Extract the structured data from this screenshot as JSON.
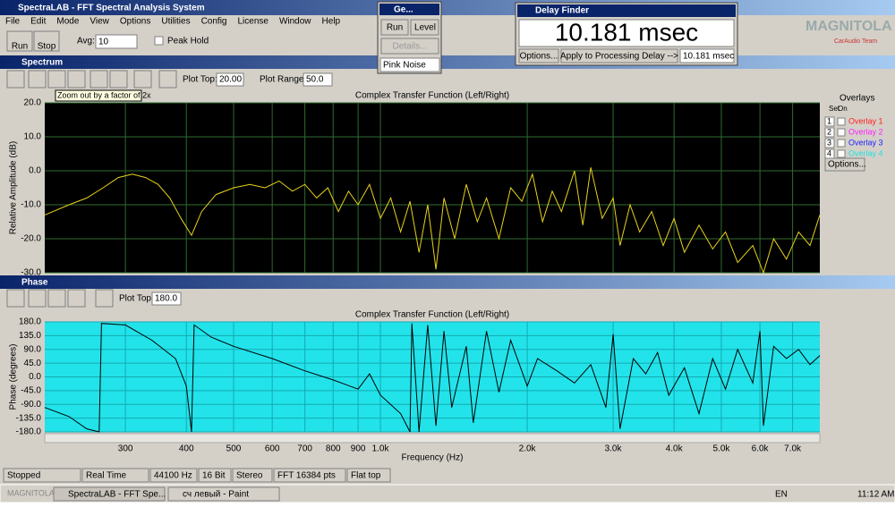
{
  "window": {
    "title": "SpectraLAB - FFT Spectral Analysis System"
  },
  "menu": [
    "File",
    "Edit",
    "Mode",
    "View",
    "Options",
    "Utilities",
    "Config",
    "License",
    "Window",
    "Help"
  ],
  "toolbar": {
    "run": "Run",
    "stop": "Stop",
    "avg_label": "Avg:",
    "avg_value": "10",
    "peak_hold": "Peak Hold"
  },
  "generator": {
    "title": "Ge...",
    "run": "Run",
    "level": "Level",
    "details": "Details...",
    "signal": "Pink Noise"
  },
  "delay_finder": {
    "title": "Delay Finder",
    "value": "10.181 msec",
    "options": "Options...",
    "apply": "Apply to Processing Delay -->",
    "applied": "10.181 msec"
  },
  "logo": {
    "name": "MAGNITOLA",
    "sub": "CarAudio Team"
  },
  "spectrum": {
    "panel_title": "Spectrum",
    "plot_top_label": "Plot Top:",
    "plot_top": "20.00",
    "plot_range_label": "Plot Range:",
    "plot_range": "50.0",
    "tooltip": "Zoom out by a factor of 2x",
    "overlays": {
      "title": "Overlays",
      "set": "Set",
      "on": "On",
      "items": [
        {
          "num": "1",
          "name": "Overlay 1",
          "color": "#ff2020"
        },
        {
          "num": "2",
          "name": "Overlay 2",
          "color": "#ff20ff"
        },
        {
          "num": "3",
          "name": "Overlay 3",
          "color": "#2020ff"
        },
        {
          "num": "4",
          "name": "Overlay 4",
          "color": "#20e0e0"
        }
      ],
      "options": "Options..."
    },
    "chart_data": {
      "type": "line",
      "title": "Complex Transfer Function (Left/Right)",
      "y_label": "Relative Amplitude (dB)",
      "xscale": "log",
      "grid": true,
      "background": "#000000",
      "grid_color": "#2f6b2f",
      "color": "#e8d21c",
      "xlim": [
        205,
        7960
      ],
      "xticks": [
        300,
        400,
        500,
        600,
        700,
        800,
        900,
        1000,
        2000,
        3000,
        4000,
        5000,
        6000,
        7000
      ],
      "ylim": [
        -30,
        20
      ],
      "yticks": [
        {
          "value": 20,
          "label": "20.0"
        },
        {
          "value": 10,
          "label": "10.0"
        },
        {
          "value": 0,
          "label": "0.0"
        },
        {
          "value": -10,
          "label": "-10.0"
        },
        {
          "value": -20,
          "label": "-20.0"
        },
        {
          "value": -30,
          "label": "-30.0"
        }
      ],
      "x": [
        205,
        230,
        250,
        270,
        290,
        310,
        330,
        350,
        370,
        390,
        410,
        430,
        460,
        500,
        540,
        580,
        620,
        660,
        700,
        740,
        780,
        820,
        860,
        900,
        950,
        1000,
        1050,
        1100,
        1150,
        1200,
        1250,
        1300,
        1350,
        1420,
        1500,
        1580,
        1650,
        1750,
        1850,
        1950,
        2050,
        2150,
        2250,
        2350,
        2500,
        2600,
        2700,
        2850,
        3000,
        3100,
        3250,
        3400,
        3600,
        3800,
        4000,
        4200,
        4500,
        4800,
        5100,
        5400,
        5800,
        6100,
        6400,
        6800,
        7200,
        7600,
        7960
      ],
      "values": [
        -13,
        -10,
        -8,
        -5,
        -2,
        -1,
        -2,
        -4,
        -8,
        -14,
        -19,
        -12,
        -7,
        -5,
        -4,
        -5,
        -3,
        -6,
        -4,
        -8,
        -5,
        -12,
        -6,
        -10,
        -4,
        -14,
        -8,
        -18,
        -9,
        -24,
        -10,
        -29,
        -8,
        -20,
        -4,
        -15,
        -8,
        -20,
        -5,
        -9,
        -1,
        -15,
        -6,
        -12,
        0,
        -16,
        1,
        -14,
        -8,
        -22,
        -10,
        -18,
        -12,
        -22,
        -14,
        -24,
        -16,
        -23,
        -18,
        -27,
        -22,
        -30,
        -20,
        -26,
        -18,
        -22,
        -13
      ]
    }
  },
  "phase": {
    "panel_title": "Phase",
    "plot_top_label": "Plot Top:",
    "plot_top": "180.0",
    "chart_data": {
      "type": "line",
      "title": "Complex Transfer Function (Left/Right)",
      "y_label": "Phase (degrees)",
      "x_label": "Frequency (Hz)",
      "xscale": "log",
      "grid": true,
      "background": "#22e3ea",
      "grid_color": "#14a9b2",
      "color": "#000000",
      "xlim": [
        205,
        7960
      ],
      "xticks": [
        300,
        400,
        500,
        600,
        700,
        800,
        900,
        {
          "value": 1000,
          "label": "1.0k"
        },
        {
          "value": 2000,
          "label": "2.0k"
        },
        {
          "value": 3000,
          "label": "3.0k"
        },
        {
          "value": 4000,
          "label": "4.0k"
        },
        {
          "value": 5000,
          "label": "5.0k"
        },
        {
          "value": 6000,
          "label": "6.0k"
        },
        {
          "value": 7000,
          "label": "7.0k"
        }
      ],
      "ylim": [
        -180,
        180
      ],
      "yticks": [
        {
          "value": 180,
          "label": "180.0"
        },
        {
          "value": 135,
          "label": "135.0"
        },
        {
          "value": 90,
          "label": "90.0"
        },
        {
          "value": 45,
          "label": "45.0"
        },
        {
          "value": 0,
          "label": "0.0"
        },
        {
          "value": -45,
          "label": "-45.0"
        },
        {
          "value": -90,
          "label": "-90.0"
        },
        {
          "value": -135,
          "label": "-135.0"
        },
        {
          "value": -180,
          "label": "-180.0"
        }
      ],
      "x": [
        205,
        230,
        250,
        265,
        268,
        300,
        340,
        380,
        400,
        410,
        415,
        450,
        500,
        600,
        700,
        800,
        900,
        950,
        1000,
        1100,
        1150,
        1160,
        1200,
        1250,
        1300,
        1350,
        1400,
        1500,
        1550,
        1650,
        1750,
        1850,
        2000,
        2100,
        2300,
        2500,
        2700,
        2900,
        3000,
        3100,
        3300,
        3500,
        3700,
        3900,
        4200,
        4500,
        4800,
        5100,
        5400,
        5800,
        6000,
        6100,
        6400,
        6800,
        7200,
        7600,
        7960
      ],
      "values": [
        -100,
        -130,
        -170,
        -180,
        175,
        170,
        120,
        60,
        -30,
        -180,
        170,
        130,
        100,
        60,
        20,
        -10,
        -40,
        10,
        -60,
        -120,
        -180,
        175,
        -180,
        170,
        -160,
        150,
        -100,
        100,
        -150,
        150,
        -50,
        120,
        -30,
        60,
        20,
        -20,
        40,
        -100,
        140,
        -170,
        60,
        10,
        80,
        -60,
        30,
        -120,
        60,
        -40,
        90,
        -20,
        150,
        -160,
        100,
        60,
        90,
        40,
        70
      ]
    }
  },
  "status": [
    "Stopped",
    "Real Time",
    "44100 Hz",
    "16 Bit",
    "Stereo",
    "FFT 16384 pts",
    "Flat top"
  ],
  "taskbar": {
    "watermark": "MAGNITOLA SPECTRA NET",
    "items": [
      "SpectraLAB - FFT Spe...",
      "сч левый - Paint"
    ],
    "lang": "EN",
    "clock": "11:12 AM"
  }
}
